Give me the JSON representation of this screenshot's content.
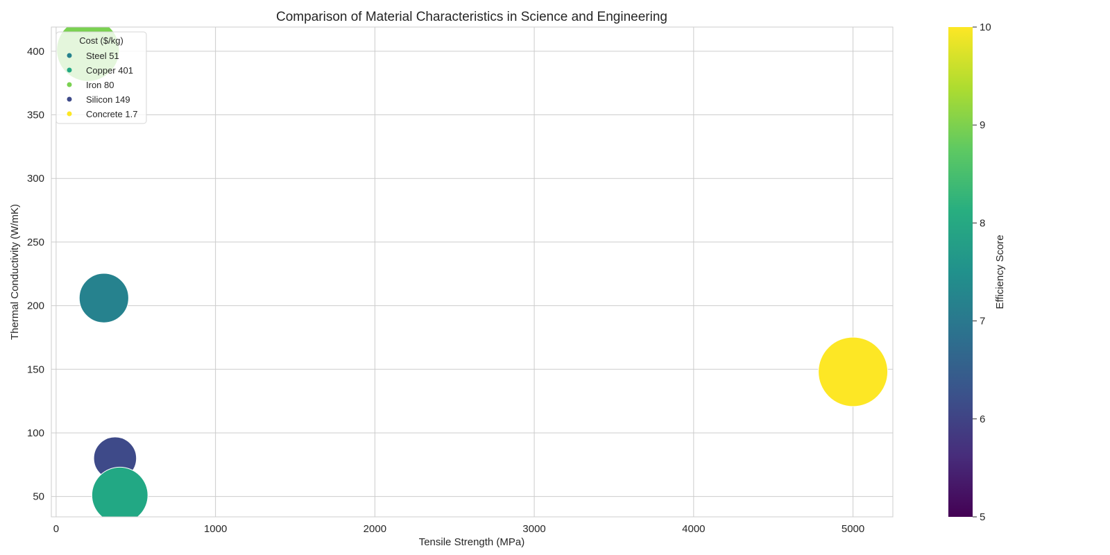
{
  "chart_data": {
    "type": "scatter",
    "title": "Comparison of Material Characteristics in Science and Engineering",
    "xlabel": "Tensile Strength (MPa)",
    "ylabel": "Thermal Conductivity (W/mK)",
    "xlim": [
      -30,
      5250
    ],
    "ylim": [
      34,
      419
    ],
    "xticks": [
      0,
      1000,
      2000,
      3000,
      4000,
      5000
    ],
    "yticks": [
      50,
      100,
      150,
      200,
      250,
      300,
      350,
      400
    ],
    "grid": true,
    "legend": {
      "title": "Cost ($/kg)",
      "placement": "top-left",
      "entries": [
        "Steel 51",
        "Copper 401",
        "Iron 80",
        "Silicon 149",
        "Concrete 1.7"
      ]
    },
    "colorbar": {
      "label": "Efficiency Score",
      "range": [
        5,
        10
      ],
      "ticks": [
        5,
        6,
        7,
        8,
        9,
        10
      ],
      "colormap": "viridis"
    },
    "points": [
      {
        "legend_label": "Steel 51",
        "x": 300,
        "y": 206,
        "score": 7,
        "cost": 51,
        "color": "#26828e"
      },
      {
        "legend_label": "Copper 401",
        "x": 400,
        "y": 51,
        "score": 8,
        "cost": 401,
        "color": "#22a884"
      },
      {
        "legend_label": "Iron 80",
        "x": 200,
        "y": 401,
        "score": 9,
        "cost": 80,
        "color": "#7ad151"
      },
      {
        "legend_label": "Silicon 149",
        "x": 370,
        "y": 80,
        "score": 6,
        "cost": 149,
        "color": "#3e4a89"
      },
      {
        "legend_label": "Concrete 1.7",
        "x": 5000,
        "y": 148,
        "score": 10,
        "cost": 1.7,
        "color": "#fde725"
      }
    ]
  }
}
